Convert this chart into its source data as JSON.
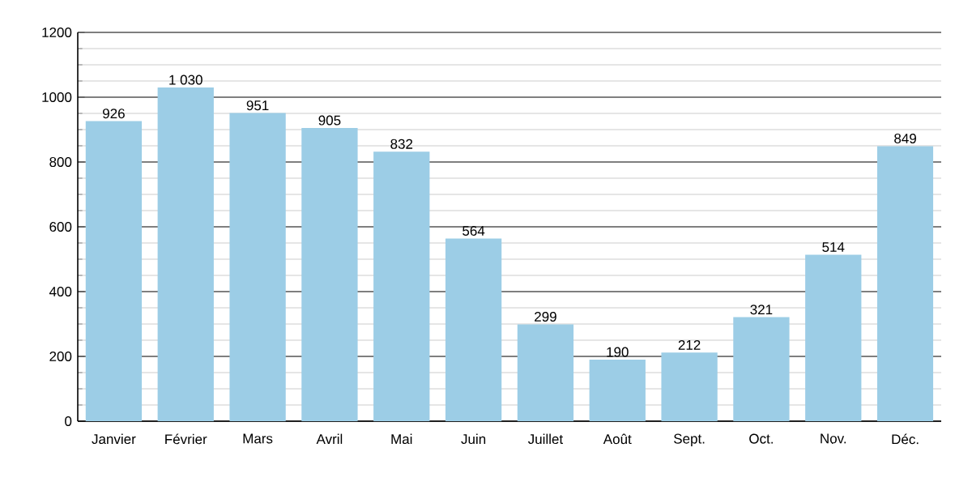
{
  "chart_data": {
    "type": "bar",
    "categories": [
      "Janvier",
      "Février",
      "Mars",
      "Avril",
      "Mai",
      "Juin",
      "Juillet",
      "Août",
      "Sept.",
      "Oct.",
      "Nov.",
      "Déc."
    ],
    "values": [
      926,
      1030,
      951,
      905,
      832,
      564,
      299,
      190,
      212,
      321,
      514,
      849
    ],
    "value_labels": [
      "926",
      "1 030",
      "951",
      "905",
      "832",
      "564",
      "299",
      "190",
      "212",
      "321",
      "514",
      "849"
    ],
    "color": "#9ccde6",
    "ylim": [
      0,
      1200
    ],
    "yticks": [
      0,
      200,
      400,
      600,
      800,
      1000,
      1200
    ],
    "grid": "y"
  }
}
